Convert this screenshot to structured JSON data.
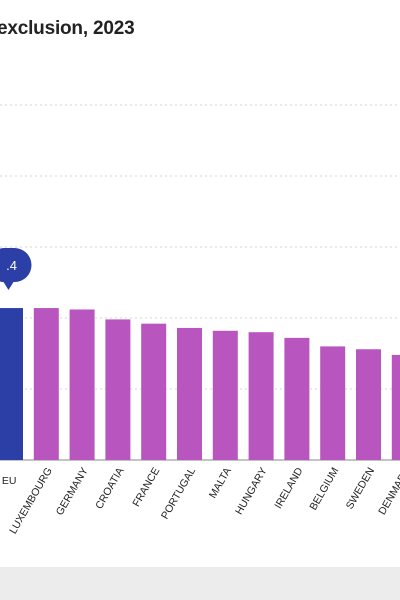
{
  "chart_data": {
    "type": "bar",
    "title": "exclusion, 2023",
    "ylim": [
      0,
      50
    ],
    "grid": true,
    "categories": [
      "EU",
      "LUXEMBOURG",
      "GERMANY",
      "CROATIA",
      "FRANCE",
      "PORTUGAL",
      "MALTA",
      "HUNGARY",
      "IRELAND",
      "BELGIUM",
      "SWEDEN",
      "DENMARK"
    ],
    "values": [
      21.4,
      21.4,
      21.2,
      19.8,
      19.2,
      18.6,
      18.2,
      18.0,
      17.2,
      16.0,
      15.6,
      14.8
    ],
    "highlight_label": ".4",
    "colors": {
      "highlight": "#2b3fa6",
      "bar": "#b855bf",
      "grid": "#d4d4d4",
      "axis": "#888888",
      "text": "#222222"
    }
  }
}
